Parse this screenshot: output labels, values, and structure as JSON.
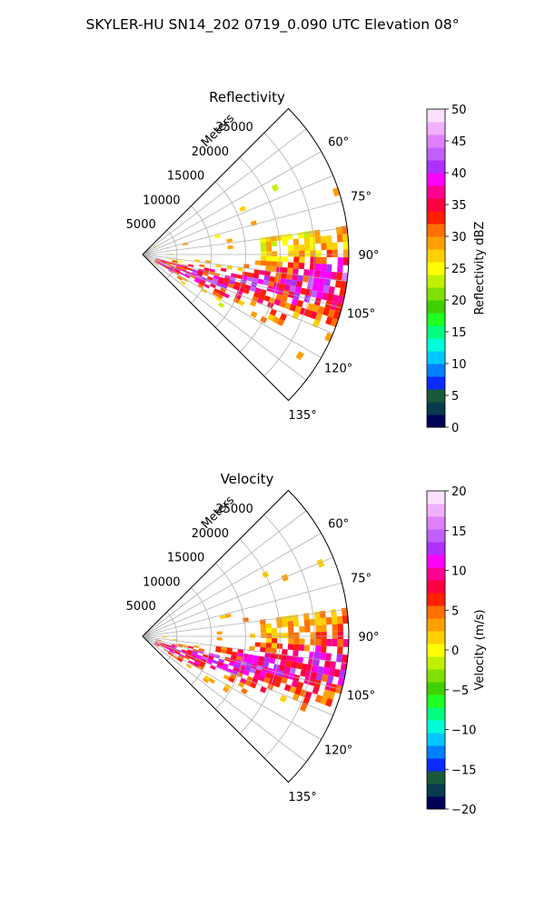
{
  "suptitle": "SKYLER-HU  SN14_202  0719_0.090 UTC Elevation 08°",
  "chart_data": [
    {
      "type": "heatmap",
      "projection": "polar-sector",
      "title": "Reflectivity",
      "radial_axis_label": "Meters",
      "radial_ticks": [
        "5000",
        "10000",
        "15000",
        "20000",
        "25000"
      ],
      "azimuth_range_deg": [
        45,
        135
      ],
      "azimuth_ticks": [
        "60°",
        "75°",
        "90°",
        "105°",
        "120°",
        "135°"
      ],
      "grid": true,
      "colorbar": {
        "label": "Reflectivity dBZ",
        "range": [
          0,
          50
        ],
        "ticks": [
          "0",
          "5",
          "10",
          "15",
          "20",
          "25",
          "30",
          "35",
          "40",
          "45",
          "50"
        ],
        "colors": [
          "#00005a",
          "#0a3a4e",
          "#1a5a3a",
          "#0a2aff",
          "#0080ff",
          "#00c8ff",
          "#00ffd8",
          "#00ff80",
          "#20ff20",
          "#40d000",
          "#80e000",
          "#c0f000",
          "#ffff00",
          "#ffd000",
          "#ffa000",
          "#ff7000",
          "#ff2000",
          "#ff0040",
          "#ff0090",
          "#ff00ff",
          "#b030ff",
          "#c060ff",
          "#e080ff",
          "#f0b0ff",
          "#fce0ff"
        ]
      },
      "echoes_dominant_range": [
        15,
        45
      ]
    },
    {
      "type": "heatmap",
      "projection": "polar-sector",
      "title": "Velocity",
      "radial_axis_label": "Meters",
      "radial_ticks": [
        "5000",
        "10000",
        "15000",
        "20000",
        "25000"
      ],
      "azimuth_range_deg": [
        45,
        135
      ],
      "azimuth_ticks": [
        "60°",
        "75°",
        "90°",
        "105°",
        "120°",
        "135°"
      ],
      "grid": true,
      "colorbar": {
        "label": "Velocity (m/s)",
        "range": [
          -20,
          20
        ],
        "ticks": [
          "−20",
          "−15",
          "−10",
          "−5",
          "0",
          "5",
          "10",
          "15",
          "20"
        ],
        "colors": [
          "#00005a",
          "#0a3a4e",
          "#1a5a3a",
          "#0a2aff",
          "#0080ff",
          "#00c8ff",
          "#00ffd8",
          "#00ff80",
          "#20ff20",
          "#40d000",
          "#80e000",
          "#c0f000",
          "#ffff00",
          "#ffd000",
          "#ffa000",
          "#ff7000",
          "#ff2000",
          "#ff0040",
          "#ff0090",
          "#ff00ff",
          "#b030ff",
          "#c060ff",
          "#e080ff",
          "#f0b0ff",
          "#fce0ff"
        ]
      },
      "echoes_dominant_range": [
        -5,
        15
      ]
    }
  ]
}
